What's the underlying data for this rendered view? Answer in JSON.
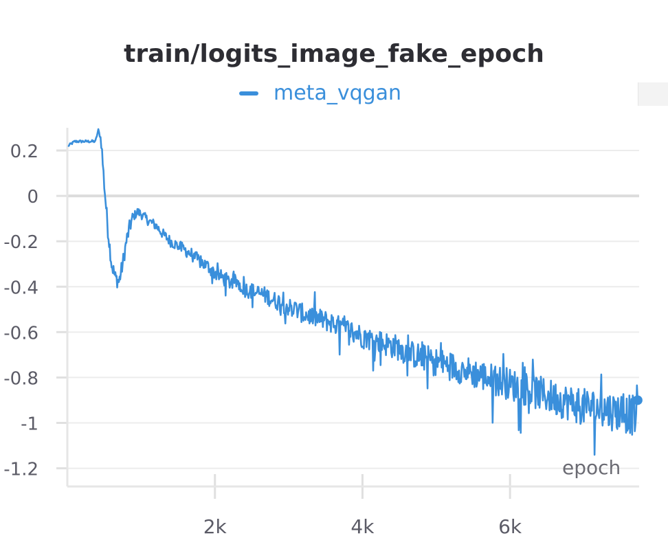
{
  "chart_data": {
    "type": "line",
    "title": "train/logits_image_fake_epoch",
    "xlabel": "epoch",
    "ylabel": "",
    "xlim": [
      0,
      7750
    ],
    "ylim": [
      -1.28,
      0.3
    ],
    "x_ticks": [
      2000,
      4000,
      6000
    ],
    "x_tick_labels": [
      "2k",
      "4k",
      "6k"
    ],
    "y_ticks": [
      0.2,
      0,
      -0.2,
      -0.4,
      -0.6,
      -0.8,
      -1,
      -1.2
    ],
    "y_tick_labels": [
      "0.2",
      "0",
      "-0.2",
      "-0.4",
      "-0.6",
      "-0.8",
      "-1",
      "-1.2"
    ],
    "grid": true,
    "legend_position": "top-center",
    "series": [
      {
        "name": "meta_vqgan",
        "color": "#3a8fdb",
        "points": [
          [
            10,
            0.22
          ],
          [
            100,
            0.24
          ],
          [
            200,
            0.24
          ],
          [
            300,
            0.24
          ],
          [
            380,
            0.24
          ],
          [
            420,
            0.29
          ],
          [
            460,
            0.24
          ],
          [
            500,
            0.05
          ],
          [
            550,
            -0.15
          ],
          [
            600,
            -0.3
          ],
          [
            650,
            -0.36
          ],
          [
            700,
            -0.38
          ],
          [
            750,
            -0.3
          ],
          [
            800,
            -0.2
          ],
          [
            850,
            -0.13
          ],
          [
            900,
            -0.09
          ],
          [
            950,
            -0.07
          ],
          [
            1000,
            -0.08
          ],
          [
            1100,
            -0.11
          ],
          [
            1200,
            -0.13
          ],
          [
            1300,
            -0.17
          ],
          [
            1400,
            -0.2
          ],
          [
            1500,
            -0.22
          ],
          [
            1600,
            -0.24
          ],
          [
            1700,
            -0.26
          ],
          [
            1800,
            -0.29
          ],
          [
            1900,
            -0.31
          ],
          [
            2000,
            -0.34
          ],
          [
            2100,
            -0.36
          ],
          [
            2200,
            -0.38
          ],
          [
            2300,
            -0.38
          ],
          [
            2400,
            -0.41
          ],
          [
            2500,
            -0.42
          ],
          [
            2600,
            -0.43
          ],
          [
            2700,
            -0.44
          ],
          [
            2800,
            -0.46
          ],
          [
            2900,
            -0.47
          ],
          [
            3000,
            -0.49
          ],
          [
            3100,
            -0.5
          ],
          [
            3200,
            -0.52
          ],
          [
            3300,
            -0.53
          ],
          [
            3400,
            -0.54
          ],
          [
            3500,
            -0.55
          ],
          [
            3600,
            -0.56
          ],
          [
            3700,
            -0.58
          ],
          [
            3800,
            -0.59
          ],
          [
            3900,
            -0.6
          ],
          [
            4000,
            -0.62
          ],
          [
            4100,
            -0.63
          ],
          [
            4200,
            -0.64
          ],
          [
            4300,
            -0.65
          ],
          [
            4400,
            -0.66
          ],
          [
            4500,
            -0.67
          ],
          [
            4600,
            -0.69
          ],
          [
            4700,
            -0.7
          ],
          [
            4800,
            -0.71
          ],
          [
            4900,
            -0.72
          ],
          [
            5000,
            -0.73
          ],
          [
            5100,
            -0.74
          ],
          [
            5200,
            -0.75
          ],
          [
            5300,
            -0.76
          ],
          [
            5400,
            -0.77
          ],
          [
            5500,
            -0.78
          ],
          [
            5600,
            -0.79
          ],
          [
            5700,
            -0.8
          ],
          [
            5800,
            -0.81
          ],
          [
            5900,
            -0.82
          ],
          [
            6000,
            -0.83
          ],
          [
            6100,
            -0.84
          ],
          [
            6200,
            -0.85
          ],
          [
            6300,
            -0.86
          ],
          [
            6400,
            -0.87
          ],
          [
            6500,
            -0.88
          ],
          [
            6600,
            -0.89
          ],
          [
            6700,
            -0.9
          ],
          [
            6800,
            -0.91
          ],
          [
            6900,
            -0.92
          ],
          [
            7000,
            -0.93
          ],
          [
            7100,
            -0.93
          ],
          [
            7200,
            -0.94
          ],
          [
            7300,
            -0.94
          ],
          [
            7400,
            -0.95
          ],
          [
            7500,
            -0.95
          ],
          [
            7600,
            -0.96
          ],
          [
            7700,
            -0.97
          ],
          [
            7730,
            -0.9
          ]
        ]
      }
    ]
  }
}
